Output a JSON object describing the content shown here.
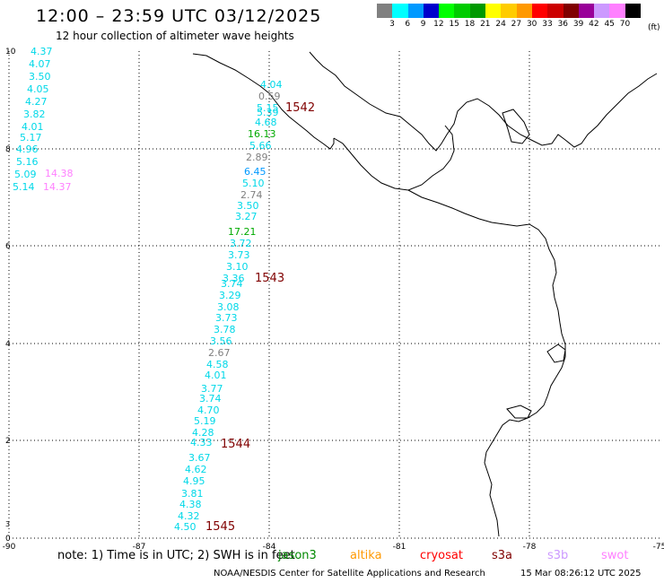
{
  "header": {
    "title": "12:00 – 23:59 UTC 03/12/2025",
    "subtitle": "12 hour collection of altimeter wave heights"
  },
  "legend": {
    "unit": "(ft)",
    "bins": [
      {
        "label": "3",
        "color": "#808080"
      },
      {
        "label": "6",
        "color": "#00ffff"
      },
      {
        "label": "9",
        "color": "#0099ff"
      },
      {
        "label": "12",
        "color": "#0000cc"
      },
      {
        "label": "15",
        "color": "#00ff00"
      },
      {
        "label": "18",
        "color": "#00cc00"
      },
      {
        "label": "21",
        "color": "#009900"
      },
      {
        "label": "24",
        "color": "#ffff00"
      },
      {
        "label": "27",
        "color": "#ffcc00"
      },
      {
        "label": "30",
        "color": "#ff9900"
      },
      {
        "label": "33",
        "color": "#ff0000"
      },
      {
        "label": "36",
        "color": "#cc0000"
      },
      {
        "label": "39",
        "color": "#800000"
      },
      {
        "label": "42",
        "color": "#990099"
      },
      {
        "label": "45",
        "color": "#cc99ff"
      },
      {
        "label": "70",
        "color": "#ff80ff"
      },
      {
        "label": "",
        "color": "#000000"
      }
    ]
  },
  "map": {
    "lon_ticks": [
      "-90",
      "-87",
      "-84",
      "-81",
      "-78",
      "-75"
    ],
    "lat_ticks": [
      "10",
      "8",
      "6",
      "4",
      "2",
      "0"
    ],
    "small_ticks": [
      "3"
    ],
    "track_ids": [
      "1542",
      "1543",
      "1544",
      "1545"
    ],
    "track_id_color": "#800000",
    "wave_heights": [
      {
        "text": "4.37",
        "color": "#00d8e8"
      },
      {
        "text": "4.07",
        "color": "#00d8e8"
      },
      {
        "text": "3.50",
        "color": "#00d8e8"
      },
      {
        "text": "4.05",
        "color": "#00d8e8"
      },
      {
        "text": "4.27",
        "color": "#00d8e8"
      },
      {
        "text": "3.82",
        "color": "#00d8e8"
      },
      {
        "text": "4.01",
        "color": "#00d8e8"
      },
      {
        "text": "5.17",
        "color": "#00d8e8"
      },
      {
        "text": "4.96",
        "color": "#00d8e8"
      },
      {
        "text": "5.16",
        "color": "#00d8e8"
      },
      {
        "text": "5.09",
        "color": "#00d8e8"
      },
      {
        "text": "5.14",
        "color": "#00d8e8"
      },
      {
        "text": "14.38",
        "color": "#ff80ff"
      },
      {
        "text": "14.37",
        "color": "#ff80ff"
      },
      {
        "text": "4.04",
        "color": "#00d8e8"
      },
      {
        "text": "0.59",
        "color": "#808080"
      },
      {
        "text": "5.15",
        "color": "#00d8e8"
      },
      {
        "text": "5.39",
        "color": "#00d8e8"
      },
      {
        "text": "4.68",
        "color": "#00d8e8"
      },
      {
        "text": "16.13",
        "color": "#00aa00"
      },
      {
        "text": "5.66",
        "color": "#00d8e8"
      },
      {
        "text": "2.89",
        "color": "#808080"
      },
      {
        "text": "6.45",
        "color": "#0099ff"
      },
      {
        "text": "5.10",
        "color": "#00d8e8"
      },
      {
        "text": "2.74",
        "color": "#808080"
      },
      {
        "text": "3.50",
        "color": "#00d8e8"
      },
      {
        "text": "3.27",
        "color": "#00d8e8"
      },
      {
        "text": "17.21",
        "color": "#00aa00"
      },
      {
        "text": "3.72",
        "color": "#00d8e8"
      },
      {
        "text": "3.73",
        "color": "#00d8e8"
      },
      {
        "text": "3.10",
        "color": "#00d8e8"
      },
      {
        "text": "3.36",
        "color": "#00d8e8"
      },
      {
        "text": "3.74",
        "color": "#00d8e8"
      },
      {
        "text": "3.29",
        "color": "#00d8e8"
      },
      {
        "text": "3.08",
        "color": "#00d8e8"
      },
      {
        "text": "3.73",
        "color": "#00d8e8"
      },
      {
        "text": "3.78",
        "color": "#00d8e8"
      },
      {
        "text": "3.56",
        "color": "#00d8e8"
      },
      {
        "text": "2.67",
        "color": "#808080"
      },
      {
        "text": "4.58",
        "color": "#00d8e8"
      },
      {
        "text": "4.01",
        "color": "#00d8e8"
      },
      {
        "text": "3.77",
        "color": "#00d8e8"
      },
      {
        "text": "3.74",
        "color": "#00d8e8"
      },
      {
        "text": "4.70",
        "color": "#00d8e8"
      },
      {
        "text": "5.19",
        "color": "#00d8e8"
      },
      {
        "text": "4.28",
        "color": "#00d8e8"
      },
      {
        "text": "4.33",
        "color": "#00d8e8"
      },
      {
        "text": "3.67",
        "color": "#00d8e8"
      },
      {
        "text": "4.62",
        "color": "#00d8e8"
      },
      {
        "text": "4.95",
        "color": "#00d8e8"
      },
      {
        "text": "3.81",
        "color": "#00d8e8"
      },
      {
        "text": "4.38",
        "color": "#00d8e8"
      },
      {
        "text": "4.32",
        "color": "#00d8e8"
      },
      {
        "text": "4.50",
        "color": "#00d8e8"
      }
    ]
  },
  "footer": {
    "note": "note: 1) Time is in UTC; 2) SWH is in feet",
    "satellites": [
      {
        "name": "jason3",
        "color": "#008800"
      },
      {
        "name": "altika",
        "color": "#ff9900"
      },
      {
        "name": "cryosat",
        "color": "#ff0000"
      },
      {
        "name": "s3a",
        "color": "#800000"
      },
      {
        "name": "s3b",
        "color": "#cc99ff"
      },
      {
        "name": "swot",
        "color": "#ff80ff"
      }
    ],
    "credit": "NOAA/NESDIS Center for Satellite Applications and Research",
    "timestamp": "15 Mar 08:26:12 UTC 2025"
  }
}
